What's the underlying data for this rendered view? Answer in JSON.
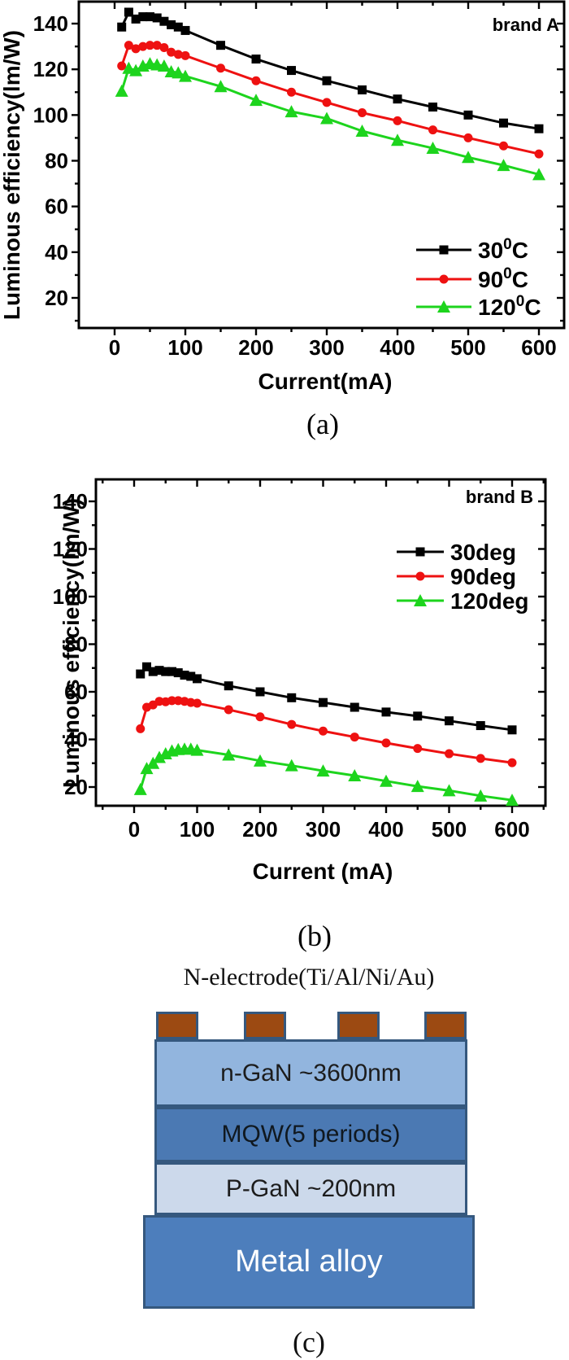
{
  "page": {
    "background": "#ffffff"
  },
  "chart_data": [
    {
      "type": "line",
      "panel_label": "(a)",
      "brand_label": "brand A",
      "xlabel": "Current(mA)",
      "ylabel": "Luminous efficiency(lm/W)",
      "x": [
        10,
        20,
        30,
        40,
        50,
        60,
        70,
        80,
        90,
        100,
        150,
        200,
        250,
        300,
        350,
        400,
        450,
        500,
        550,
        600
      ],
      "xticks": [
        0,
        100,
        200,
        300,
        400,
        500,
        600
      ],
      "yticks": [
        20,
        40,
        60,
        80,
        100,
        120,
        140
      ],
      "xlim": [
        -50,
        620
      ],
      "ylim": [
        7,
        150
      ],
      "x_minor_step": 50,
      "y_minor_step": 10,
      "grid": false,
      "legend_position": "inside-right-lower",
      "series": [
        {
          "name": "30°C",
          "legend_segments": [
            {
              "t": "30"
            },
            {
              "t": "0",
              "sup": true
            },
            {
              "t": "C"
            }
          ],
          "color": "#000000",
          "marker": "square",
          "values": [
            138.5,
            145,
            142,
            143,
            143,
            142.5,
            141,
            139.5,
            138.5,
            137,
            130.5,
            124.5,
            119.5,
            115,
            111,
            107,
            103.5,
            100,
            96.5,
            94
          ]
        },
        {
          "name": "90°C",
          "legend_segments": [
            {
              "t": "90"
            },
            {
              "t": "0",
              "sup": true
            },
            {
              "t": "C"
            }
          ],
          "color": "#ee1111",
          "marker": "circle",
          "values": [
            121.5,
            130.5,
            129,
            130,
            130.5,
            130.5,
            129.5,
            127.5,
            126.5,
            126,
            120.5,
            115,
            110,
            105.5,
            101,
            97.5,
            93.5,
            90,
            86.5,
            83
          ]
        },
        {
          "name": "120°C",
          "legend_segments": [
            {
              "t": "120"
            },
            {
              "t": "0",
              "sup": true
            },
            {
              "t": "C"
            }
          ],
          "color": "#1dd41d",
          "marker": "triangle",
          "values": [
            110.5,
            120.5,
            119.5,
            121.5,
            122.5,
            122,
            121.5,
            119,
            118.5,
            117,
            112.5,
            106.5,
            101.5,
            98.5,
            93,
            89,
            85.5,
            81.5,
            78,
            74
          ]
        }
      ]
    },
    {
      "type": "line",
      "panel_label": "(b)",
      "brand_label": "brand B",
      "xlabel": "Current (mA)",
      "ylabel": "Luminous efficiency(lm/W)",
      "x": [
        10,
        20,
        30,
        40,
        50,
        60,
        70,
        80,
        90,
        100,
        150,
        200,
        250,
        300,
        350,
        400,
        450,
        500,
        550,
        600
      ],
      "xticks": [
        0,
        100,
        200,
        300,
        400,
        500,
        600
      ],
      "yticks": [
        20,
        40,
        60,
        80,
        100,
        120,
        140
      ],
      "xlim": [
        -60,
        655
      ],
      "ylim": [
        13,
        149
      ],
      "x_minor_step": 50,
      "y_minor_step": 10,
      "grid": false,
      "legend_position": "inside-right-upper",
      "series": [
        {
          "name": "30deg",
          "legend_segments": [
            {
              "t": "30deg"
            }
          ],
          "color": "#000000",
          "marker": "square",
          "values": [
            67.5,
            70.5,
            68.5,
            69,
            68.5,
            68.5,
            68,
            67,
            66.5,
            65.5,
            62.5,
            60,
            57.5,
            55.5,
            53.5,
            51.5,
            49.8,
            47.8,
            45.8,
            44
          ]
        },
        {
          "name": "90deg",
          "legend_segments": [
            {
              "t": "90deg"
            }
          ],
          "color": "#ee1111",
          "marker": "circle",
          "values": [
            44.5,
            53.5,
            54.5,
            56,
            55.8,
            56.3,
            56.3,
            56,
            55.5,
            55.2,
            52.5,
            49.5,
            46.3,
            43.5,
            41,
            38.5,
            36.2,
            34,
            32,
            30.2
          ]
        },
        {
          "name": "120deg",
          "legend_segments": [
            {
              "t": "120deg"
            }
          ],
          "color": "#1dd41d",
          "marker": "triangle",
          "values": [
            19,
            27.8,
            30,
            32.5,
            34,
            35.2,
            35.8,
            36,
            36,
            35.5,
            33.5,
            31,
            29,
            26.8,
            24.8,
            22.5,
            20.3,
            18.5,
            16.3,
            14.5
          ]
        }
      ]
    }
  ],
  "diagram": {
    "title": "N-electrode(Ti/Al/Ni/Au)",
    "panel_label": "(c)",
    "electrode_pad_count": 4,
    "pad_fill": "#9c4a12",
    "outline_color": "#35587e",
    "layers": [
      {
        "label": "n-GaN ~3600nm",
        "fill": "#92b5de",
        "text_color": "#1c1c1c"
      },
      {
        "label": "MQW(5 periods)",
        "fill": "#4b79b3",
        "text_color": "#10181f"
      },
      {
        "label": "P-GaN ~200nm",
        "fill": "#ccd9eb",
        "text_color": "#1c1c1c"
      },
      {
        "label": "Metal alloy",
        "fill": "#4d7ebc",
        "text_color": "#ffffff"
      }
    ]
  }
}
